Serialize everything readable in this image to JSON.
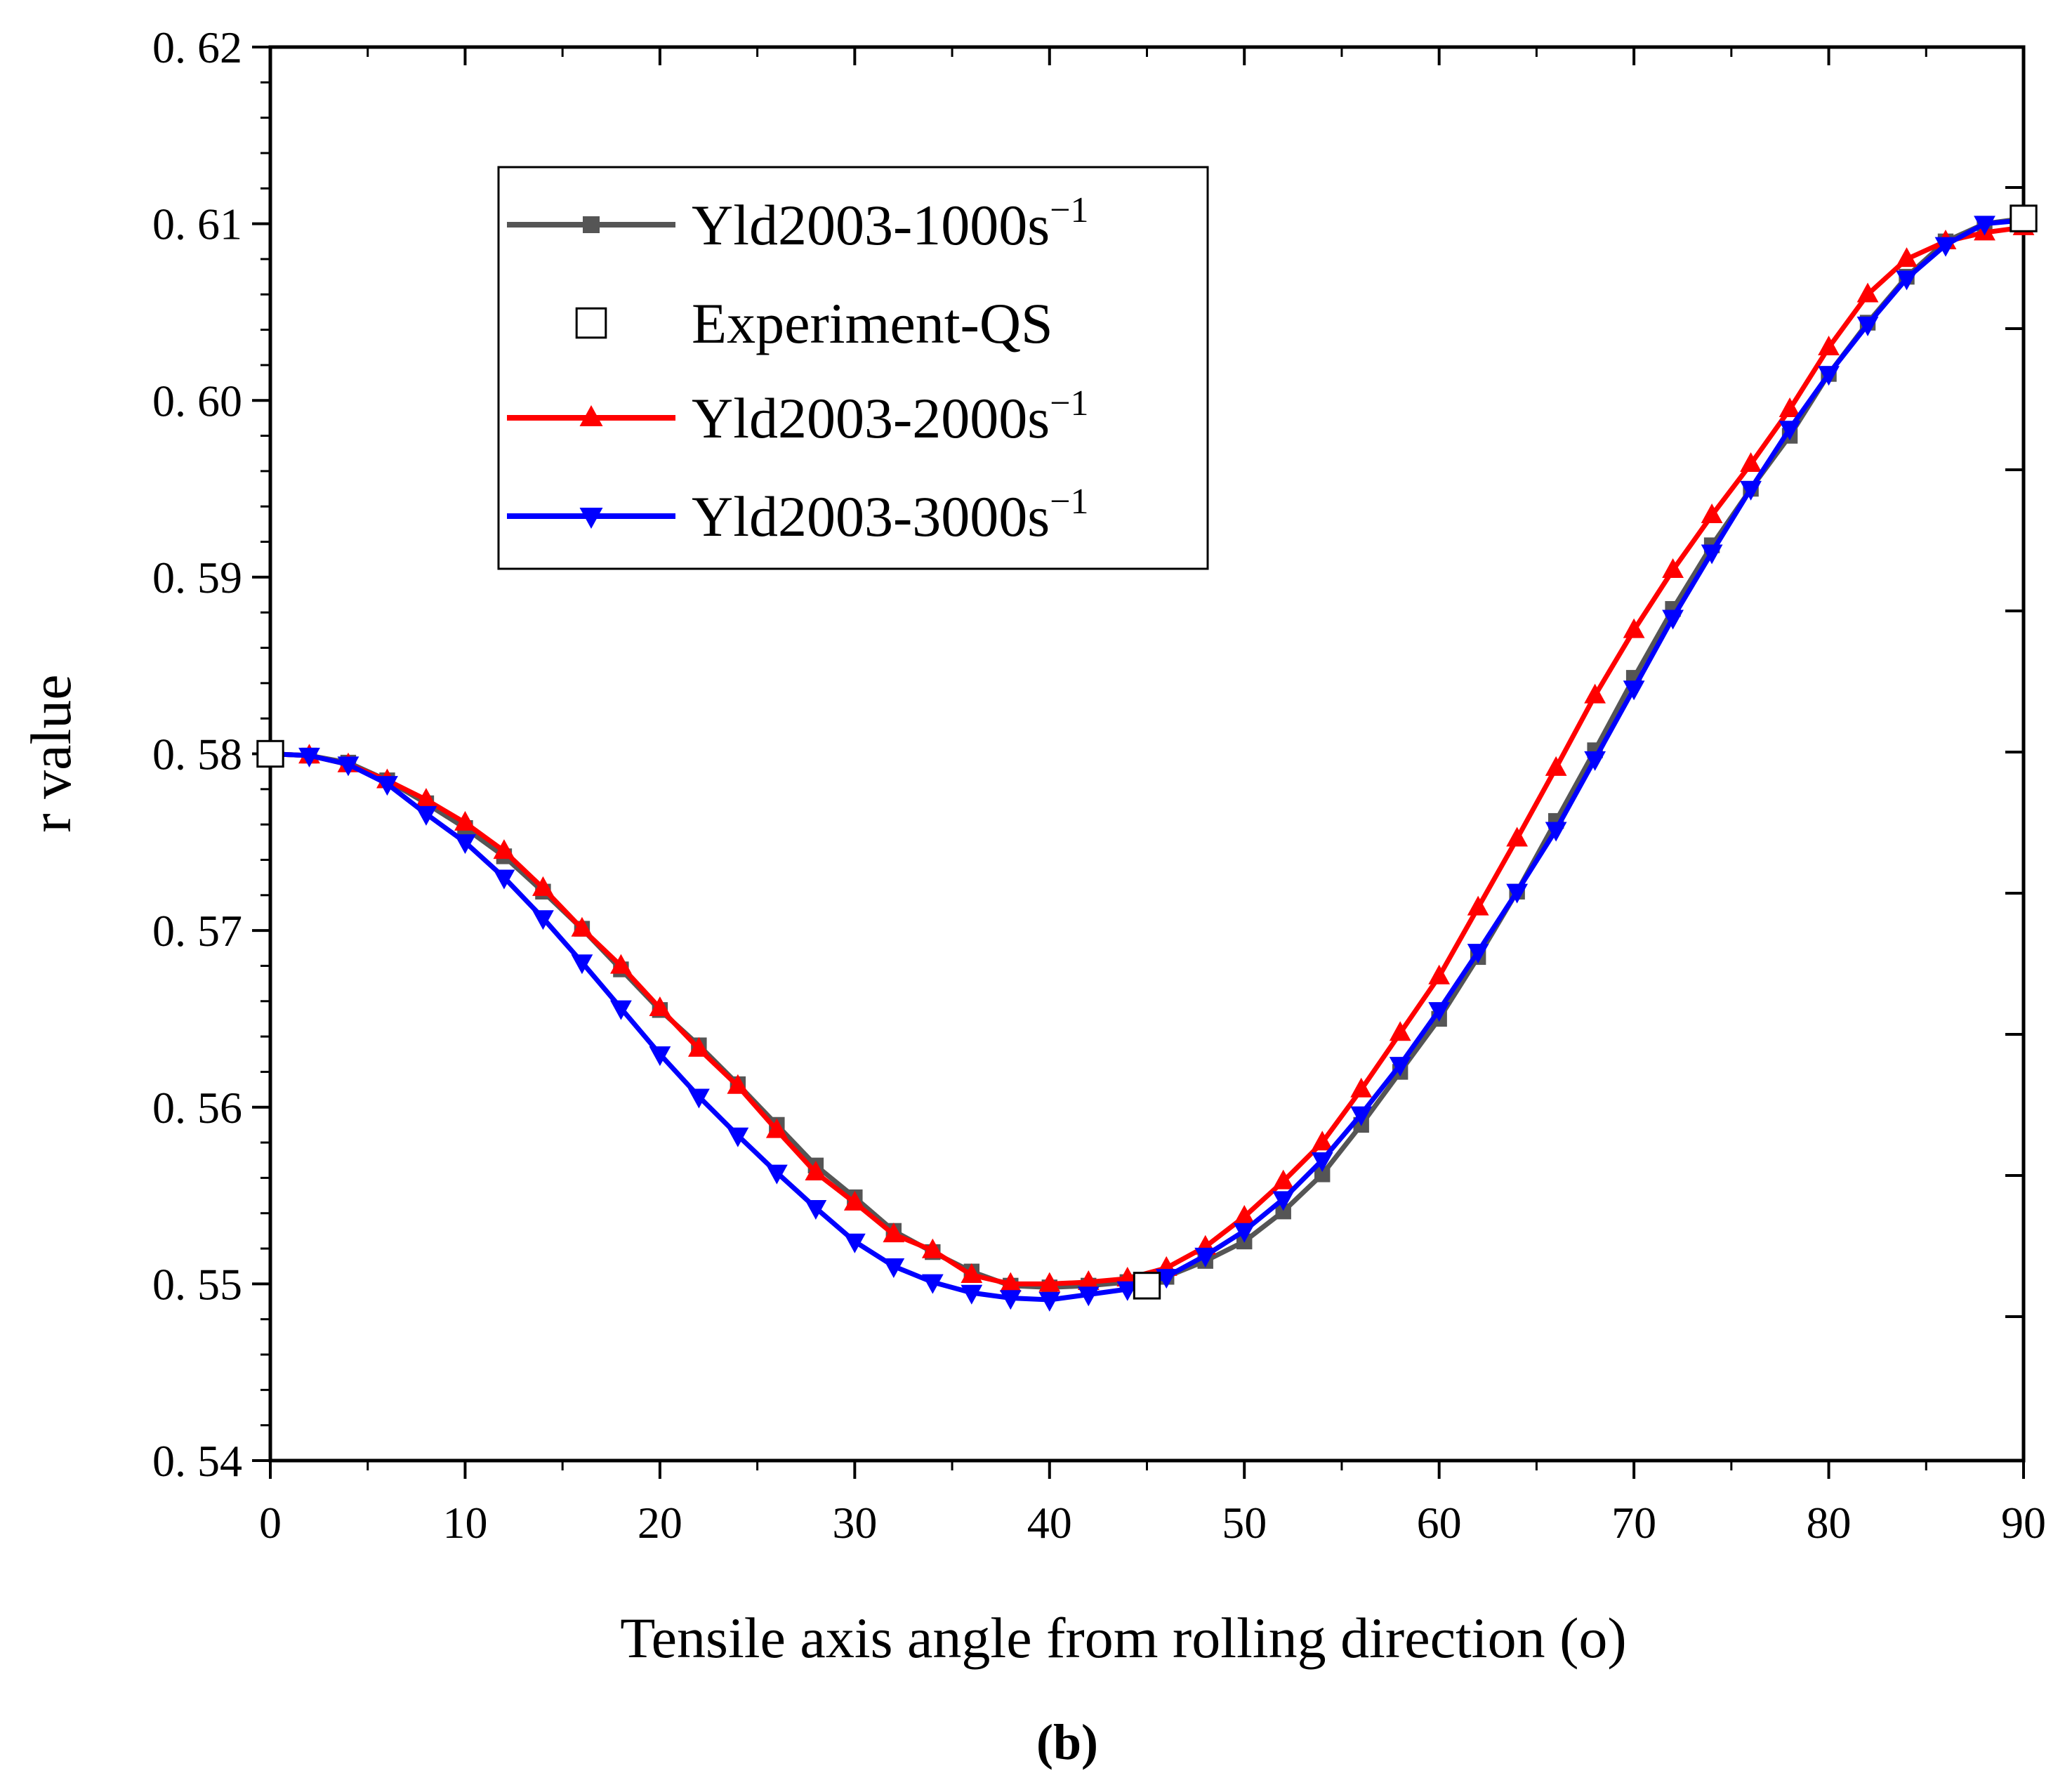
{
  "chart_data": {
    "type": "line",
    "title": "",
    "xlabel": "Tensile axis angle from rolling direction (o)",
    "ylabel": "r value",
    "panel_label": "(b)",
    "xlim": [
      0,
      90
    ],
    "ylim": [
      0.54,
      0.62
    ],
    "x_ticks": [
      0,
      10,
      20,
      30,
      40,
      50,
      60,
      70,
      80,
      90
    ],
    "x_tick_labels": [
      "0",
      "10",
      "20",
      "30",
      "40",
      "50",
      "60",
      "70",
      "80",
      "90"
    ],
    "y_ticks": [
      0.54,
      0.55,
      0.56,
      0.57,
      0.58,
      0.59,
      0.6,
      0.61,
      0.62
    ],
    "y_tick_labels": [
      "0. 54",
      "0. 55",
      "0. 56",
      "0. 57",
      "0. 58",
      "0. 59",
      "0. 60",
      "0. 61",
      "0. 62"
    ],
    "grid": false,
    "legend_position": "top-left",
    "legend_order": [
      "Yld2003-1000s",
      "Experiment-QS",
      "Yld2003-2000s",
      "Yld2003-3000s"
    ],
    "series": [
      {
        "name": "Yld2003-1000s",
        "name_superscript": "−1",
        "color": "#555555",
        "marker": "square",
        "line": true,
        "x": [
          0,
          2,
          4,
          6,
          8,
          10,
          12,
          14,
          16,
          18,
          20,
          22,
          24,
          26,
          28,
          30,
          32,
          34,
          36,
          38,
          40,
          42,
          44,
          46,
          48,
          50,
          52,
          54,
          56,
          58,
          60,
          62,
          64,
          66,
          68,
          70,
          72,
          74,
          76,
          78,
          80,
          82,
          84,
          86,
          88,
          90
        ],
        "y": [
          0.58,
          0.5799,
          0.5795,
          0.5785,
          0.5772,
          0.5758,
          0.5742,
          0.5722,
          0.5701,
          0.5678,
          0.5655,
          0.5635,
          0.5613,
          0.559,
          0.5567,
          0.5549,
          0.553,
          0.5518,
          0.5507,
          0.5499,
          0.5498,
          0.5499,
          0.5501,
          0.5504,
          0.5513,
          0.5524,
          0.5541,
          0.5562,
          0.559,
          0.562,
          0.565,
          0.5685,
          0.5722,
          0.5762,
          0.5802,
          0.5843,
          0.5882,
          0.5918,
          0.595,
          0.598,
          0.6015,
          0.6044,
          0.607,
          0.609,
          0.61,
          0.6103
        ]
      },
      {
        "name": "Experiment-QS",
        "color": "#000000",
        "marker": "open-square",
        "line": false,
        "x": [
          0,
          45,
          90
        ],
        "y": [
          0.58,
          0.5499,
          0.6103
        ]
      },
      {
        "name": "Yld2003-2000s",
        "name_superscript": "−1",
        "color": "#ff0000",
        "marker": "triangle-up",
        "line": true,
        "x": [
          0,
          2,
          4,
          6,
          8,
          10,
          12,
          14,
          16,
          18,
          20,
          22,
          24,
          26,
          28,
          30,
          32,
          34,
          36,
          38,
          40,
          42,
          44,
          46,
          48,
          50,
          52,
          54,
          56,
          58,
          60,
          62,
          64,
          66,
          68,
          70,
          72,
          74,
          76,
          78,
          80,
          82,
          84,
          86,
          88,
          90
        ],
        "y": [
          0.58,
          0.5799,
          0.5794,
          0.5785,
          0.5774,
          0.5761,
          0.5745,
          0.5724,
          0.5701,
          0.568,
          0.5656,
          0.5633,
          0.5612,
          0.5587,
          0.5563,
          0.5546,
          0.5528,
          0.5519,
          0.5505,
          0.55,
          0.55,
          0.5501,
          0.5503,
          0.5509,
          0.5521,
          0.5538,
          0.5558,
          0.558,
          0.561,
          0.5642,
          0.5674,
          0.5713,
          0.5752,
          0.5792,
          0.5833,
          0.587,
          0.5904,
          0.5935,
          0.5964,
          0.5995,
          0.603,
          0.606,
          0.608,
          0.609,
          0.6095,
          0.6098
        ]
      },
      {
        "name": "Yld2003-3000s",
        "name_superscript": "−1",
        "color": "#0000ff",
        "marker": "triangle-down",
        "line": true,
        "x": [
          0,
          2,
          4,
          6,
          8,
          10,
          12,
          14,
          16,
          18,
          20,
          22,
          24,
          26,
          28,
          30,
          32,
          34,
          36,
          38,
          40,
          42,
          44,
          46,
          48,
          50,
          52,
          54,
          56,
          58,
          60,
          62,
          64,
          66,
          68,
          70,
          72,
          74,
          76,
          78,
          80,
          82,
          84,
          86,
          88,
          90
        ],
        "y": [
          0.58,
          0.5799,
          0.5794,
          0.5783,
          0.5766,
          0.575,
          0.573,
          0.5707,
          0.5682,
          0.5656,
          0.563,
          0.5606,
          0.5584,
          0.5563,
          0.5543,
          0.5524,
          0.551,
          0.5501,
          0.5495,
          0.5492,
          0.5491,
          0.5494,
          0.5497,
          0.5504,
          0.5516,
          0.553,
          0.5548,
          0.557,
          0.5596,
          0.5624,
          0.5655,
          0.5688,
          0.5722,
          0.5757,
          0.5797,
          0.5837,
          0.5877,
          0.5914,
          0.595,
          0.5984,
          0.6015,
          0.6043,
          0.6069,
          0.6088,
          0.61,
          0.6102
        ]
      }
    ]
  }
}
